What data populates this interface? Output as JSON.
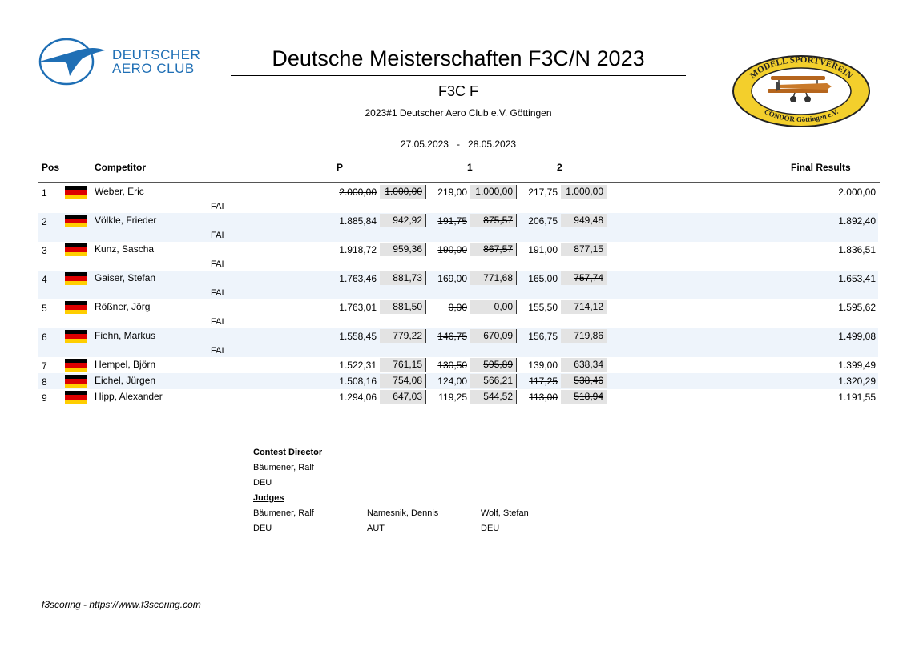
{
  "header": {
    "org_logo_text_line1": "DEUTSCHER",
    "org_logo_text_line2": "AERO CLUB",
    "title": "Deutsche Meisterschaften F3C/N 2023",
    "class": "F3C F",
    "event": "2023#1 Deutscher Aero Club e.V. Göttingen",
    "date_from": "27.05.2023",
    "date_sep": "-",
    "date_to": "28.05.2023",
    "club_logo_top": "MODELL SPORTVEREIN",
    "club_logo_bottom": "CONDOR Göttingen e.V."
  },
  "columns": {
    "pos": "Pos",
    "competitor": "Competitor",
    "p": "P",
    "r1": "1",
    "r2": "2",
    "final": "Final Results"
  },
  "rows": [
    {
      "pos": "1",
      "name": "Weber, Eric",
      "fai": "FAI",
      "p_raw": "2.000,00",
      "p_norm": "1.000,00",
      "p_struck": true,
      "r1_raw": "219,00",
      "r1_norm": "1.000,00",
      "r1_struck": false,
      "r2_raw": "217,75",
      "r2_norm": "1.000,00",
      "r2_struck": false,
      "final": "2.000,00"
    },
    {
      "pos": "2",
      "name": "Völkle, Frieder",
      "fai": "FAI",
      "p_raw": "1.885,84",
      "p_norm": "942,92",
      "p_struck": false,
      "r1_raw": "191,75",
      "r1_norm": "875,57",
      "r1_struck": true,
      "r2_raw": "206,75",
      "r2_norm": "949,48",
      "r2_struck": false,
      "final": "1.892,40"
    },
    {
      "pos": "3",
      "name": "Kunz, Sascha",
      "fai": "FAI",
      "p_raw": "1.918,72",
      "p_norm": "959,36",
      "p_struck": false,
      "r1_raw": "190,00",
      "r1_norm": "867,57",
      "r1_struck": true,
      "r2_raw": "191,00",
      "r2_norm": "877,15",
      "r2_struck": false,
      "final": "1.836,51"
    },
    {
      "pos": "4",
      "name": "Gaiser, Stefan",
      "fai": "FAI",
      "p_raw": "1.763,46",
      "p_norm": "881,73",
      "p_struck": false,
      "r1_raw": "169,00",
      "r1_norm": "771,68",
      "r1_struck": false,
      "r2_raw": "165,00",
      "r2_norm": "757,74",
      "r2_struck": true,
      "final": "1.653,41"
    },
    {
      "pos": "5",
      "name": "Rößner, Jörg",
      "fai": "FAI",
      "p_raw": "1.763,01",
      "p_norm": "881,50",
      "p_struck": false,
      "r1_raw": "0,00",
      "r1_norm": "0,00",
      "r1_struck": true,
      "r2_raw": "155,50",
      "r2_norm": "714,12",
      "r2_struck": false,
      "final": "1.595,62"
    },
    {
      "pos": "6",
      "name": "Fiehn, Markus",
      "fai": "FAI",
      "p_raw": "1.558,45",
      "p_norm": "779,22",
      "p_struck": false,
      "r1_raw": "146,75",
      "r1_norm": "670,09",
      "r1_struck": true,
      "r2_raw": "156,75",
      "r2_norm": "719,86",
      "r2_struck": false,
      "final": "1.499,08"
    },
    {
      "pos": "7",
      "name": "Hempel, Björn",
      "fai": "",
      "p_raw": "1.522,31",
      "p_norm": "761,15",
      "p_struck": false,
      "r1_raw": "130,50",
      "r1_norm": "595,89",
      "r1_struck": true,
      "r2_raw": "139,00",
      "r2_norm": "638,34",
      "r2_struck": false,
      "final": "1.399,49"
    },
    {
      "pos": "8",
      "name": "Eichel, Jürgen",
      "fai": "",
      "p_raw": "1.508,16",
      "p_norm": "754,08",
      "p_struck": false,
      "r1_raw": "124,00",
      "r1_norm": "566,21",
      "r1_struck": false,
      "r2_raw": "117,25",
      "r2_norm": "538,46",
      "r2_struck": true,
      "final": "1.320,29"
    },
    {
      "pos": "9",
      "name": "Hipp, Alexander",
      "fai": "",
      "p_raw": "1.294,06",
      "p_norm": "647,03",
      "p_struck": false,
      "r1_raw": "119,25",
      "r1_norm": "544,52",
      "r1_struck": false,
      "r2_raw": "113,00",
      "r2_norm": "518,94",
      "r2_struck": true,
      "final": "1.191,55"
    }
  ],
  "officials": {
    "director_label": "Contest Director",
    "director_name": "Bäumener, Ralf",
    "director_country": "DEU",
    "judges_label": "Judges",
    "judges": [
      {
        "name": "Bäumener, Ralf",
        "country": "DEU"
      },
      {
        "name": "Namesnik, Dennis",
        "country": "AUT"
      },
      {
        "name": "Wolf, Stefan",
        "country": "DEU"
      }
    ]
  },
  "footer": "f3scoring - https://www.f3scoring.com",
  "colors": {
    "flag_black": "#000000",
    "flag_red": "#dd0000",
    "flag_gold": "#ffce00",
    "dac_blue": "#1f6fb5",
    "row_alt": "#eef4fb"
  }
}
